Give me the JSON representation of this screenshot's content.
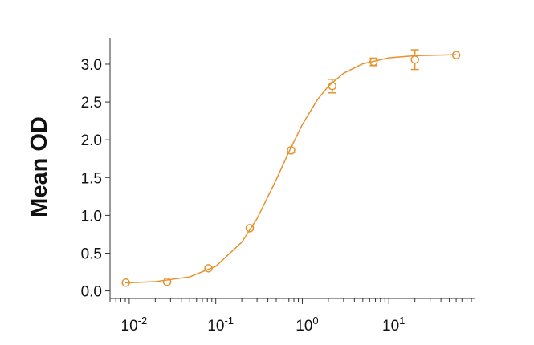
{
  "chart_data": {
    "type": "scatter",
    "y_label": "Mean OD",
    "xscale": "log",
    "xlim": [
      0.006,
      100
    ],
    "xticks": [
      {
        "value": 0.01,
        "label": "10",
        "exponent": "-2"
      },
      {
        "value": 0.1,
        "label": "10",
        "exponent": "-1"
      },
      {
        "value": 1,
        "label": "10",
        "exponent": "0"
      },
      {
        "value": 10,
        "label": "10",
        "exponent": "1"
      }
    ],
    "minor_xticks": true,
    "ylim": [
      -0.1,
      3.35
    ],
    "yticks": [
      {
        "value": 0,
        "label": "0.0"
      },
      0.5,
      {
        "value": 1,
        "label": "1.0"
      },
      1.5,
      {
        "value": 2,
        "label": "2.0"
      },
      2.5,
      {
        "value": 3,
        "label": "3.0"
      }
    ],
    "color": "#e8912d",
    "series": [
      {
        "x": [
          0.00914,
          0.0274,
          0.0823,
          0.247,
          0.741,
          2.22,
          6.67,
          20,
          60
        ],
        "values": [
          0.11,
          0.12,
          0.3,
          0.83,
          1.86,
          2.71,
          3.03,
          3.06,
          3.12
        ],
        "errors": [
          0.01,
          0.01,
          0.01,
          0.02,
          0.03,
          0.09,
          0.05,
          0.13,
          0.01
        ]
      },
      {
        "type": "line",
        "x": [
          0.009,
          0.02,
          0.05,
          0.1,
          0.2,
          0.3,
          0.5,
          0.7,
          1,
          1.5,
          2,
          3,
          5,
          10,
          20,
          60
        ],
        "values": [
          0.107,
          0.123,
          0.186,
          0.325,
          0.645,
          0.956,
          1.472,
          1.839,
          2.2,
          2.532,
          2.708,
          2.88,
          3.005,
          3.083,
          3.113,
          3.126
        ]
      }
    ]
  }
}
